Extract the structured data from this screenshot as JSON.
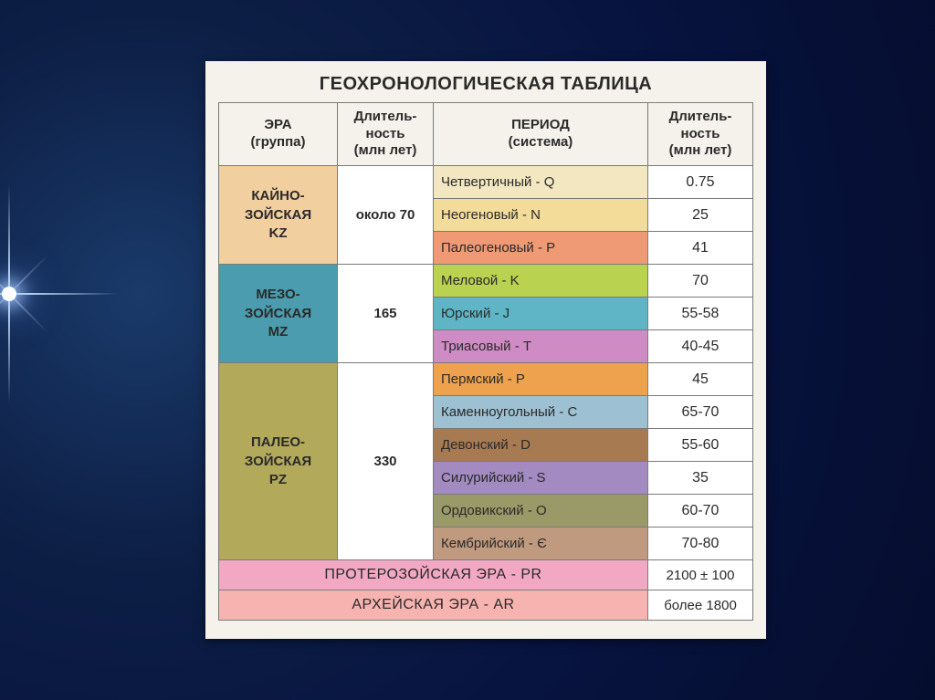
{
  "title": "ГЕОХРОНОЛОГИЧЕСКАЯ ТАБЛИЦА",
  "columns": {
    "era": "ЭРА\n(группа)",
    "dur1": "Длитель-\nность\n(млн лет)",
    "period": "ПЕРИОД\n(система)",
    "dur2": "Длитель-\nность\n(млн лет)"
  },
  "eras": [
    {
      "name": "КАЙНО-\nЗОЙСКАЯ\nKZ",
      "bg": "#f2cf9f",
      "duration": "около 70",
      "periods": [
        {
          "label": "Четвертичный - Q",
          "bg": "#f3e7c2",
          "dur": "0.75"
        },
        {
          "label": "Неогеновый - N",
          "bg": "#f3dc9a",
          "dur": "25"
        },
        {
          "label": "Палеогеновый - P",
          "bg": "#f09a75",
          "dur": "41"
        }
      ]
    },
    {
      "name": "МЕЗО-\nЗОЙСКАЯ\nMZ",
      "bg": "#4a9cae",
      "duration": "165",
      "periods": [
        {
          "label": "Меловой - K",
          "bg": "#b9d24f",
          "dur": "70"
        },
        {
          "label": "Юрский - J",
          "bg": "#5fb5c6",
          "dur": "55-58"
        },
        {
          "label": "Триасовый - T",
          "bg": "#cf8bc4",
          "dur": "40-45"
        }
      ]
    },
    {
      "name": "ПАЛЕО-\nЗОЙСКАЯ\nPZ",
      "bg": "#b3a95b",
      "duration": "330",
      "periods": [
        {
          "label": "Пермский - P",
          "bg": "#efa24d",
          "dur": "45"
        },
        {
          "label": "Каменноугольный - C",
          "bg": "#9dc0d2",
          "dur": "65-70"
        },
        {
          "label": "Девонский - D",
          "bg": "#a87a52",
          "dur": "55-60"
        },
        {
          "label": "Силурийский - S",
          "bg": "#a38ac0",
          "dur": "35"
        },
        {
          "label": "Ордовикский - O",
          "bg": "#9a9a69",
          "dur": "60-70"
        },
        {
          "label": "Кембрийский - Є",
          "bg": "#c09a7f",
          "dur": "70-80"
        }
      ]
    }
  ],
  "bottom": [
    {
      "label": "ПРОТЕРОЗОЙСКАЯ ЭРА   -   PR",
      "bg": "#f2a8c2",
      "dur": "2100 ± 100"
    },
    {
      "label": "АРХЕЙСКАЯ ЭРА   -   AR",
      "bg": "#f6b3b0",
      "dur": "более 1800"
    }
  ],
  "col_widths": {
    "era": 130,
    "dur1": 105,
    "period": 235,
    "dur2": 115
  }
}
